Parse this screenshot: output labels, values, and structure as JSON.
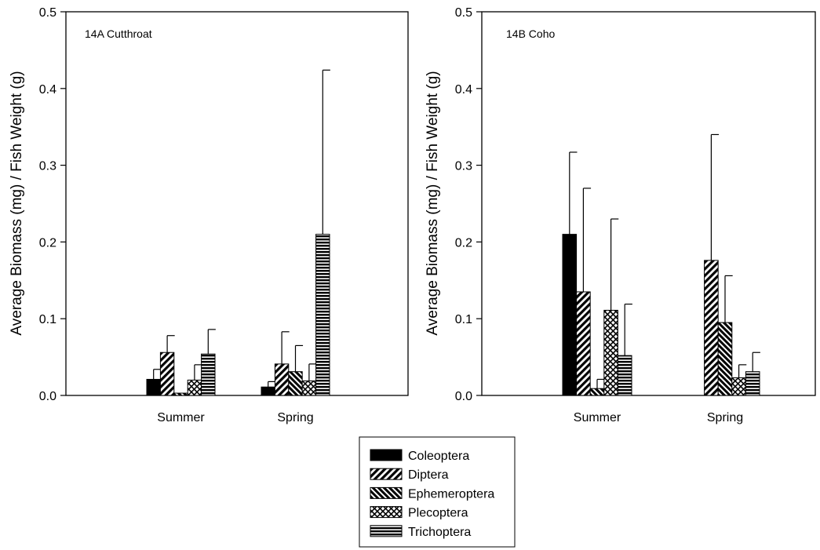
{
  "chart_data": [
    {
      "type": "bar",
      "panel_label": "14A Cutthroat",
      "ylabel": "Average Biomass (mg) / Fish Weight (g)",
      "xlabel": "",
      "categories": [
        "Summer",
        "Spring"
      ],
      "ylim": [
        0,
        0.5
      ],
      "yticks": [
        "0.0",
        "0.1",
        "0.2",
        "0.3",
        "0.4",
        "0.5"
      ],
      "series": [
        {
          "name": "Coleoptera",
          "values": [
            0.021,
            0.011
          ],
          "errors": [
            0.013,
            0.007
          ]
        },
        {
          "name": "Diptera",
          "values": [
            0.056,
            0.041
          ],
          "errors": [
            0.022,
            0.042
          ]
        },
        {
          "name": "Ephemeroptera",
          "values": [
            0.003,
            0.031
          ],
          "errors": [
            0.0,
            0.034
          ]
        },
        {
          "name": "Plecoptera",
          "values": [
            0.02,
            0.019
          ],
          "errors": [
            0.02,
            0.022
          ]
        },
        {
          "name": "Trichoptera",
          "values": [
            0.054,
            0.21
          ],
          "errors": [
            0.032,
            0.214
          ]
        }
      ]
    },
    {
      "type": "bar",
      "panel_label": "14B Coho",
      "ylabel": "Average Biomass (mg) / Fish Weight (g)",
      "xlabel": "",
      "categories": [
        "Summer",
        "Spring"
      ],
      "ylim": [
        0,
        0.5
      ],
      "yticks": [
        "0.0",
        "0.1",
        "0.2",
        "0.3",
        "0.4",
        "0.5"
      ],
      "series": [
        {
          "name": "Coleoptera",
          "values": [
            0.21,
            0.0
          ],
          "errors": [
            0.107,
            0.0
          ]
        },
        {
          "name": "Diptera",
          "values": [
            0.135,
            0.176
          ],
          "errors": [
            0.135,
            0.164
          ]
        },
        {
          "name": "Ephemeroptera",
          "values": [
            0.009,
            0.095
          ],
          "errors": [
            0.012,
            0.061
          ]
        },
        {
          "name": "Plecoptera",
          "values": [
            0.111,
            0.023
          ],
          "errors": [
            0.119,
            0.017
          ]
        },
        {
          "name": "Trichoptera",
          "values": [
            0.052,
            0.031
          ],
          "errors": [
            0.067,
            0.025
          ]
        }
      ]
    }
  ],
  "legend": {
    "placement": "bottom-center",
    "items": [
      {
        "name": "Coleoptera",
        "pattern": "solid-black"
      },
      {
        "name": "Diptera",
        "pattern": "diagonal-up"
      },
      {
        "name": "Ephemeroptera",
        "pattern": "diagonal-down"
      },
      {
        "name": "Plecoptera",
        "pattern": "crosshatch"
      },
      {
        "name": "Trichoptera",
        "pattern": "horizontal"
      }
    ]
  },
  "colors": {
    "ink": "#000000",
    "background": "#ffffff"
  }
}
